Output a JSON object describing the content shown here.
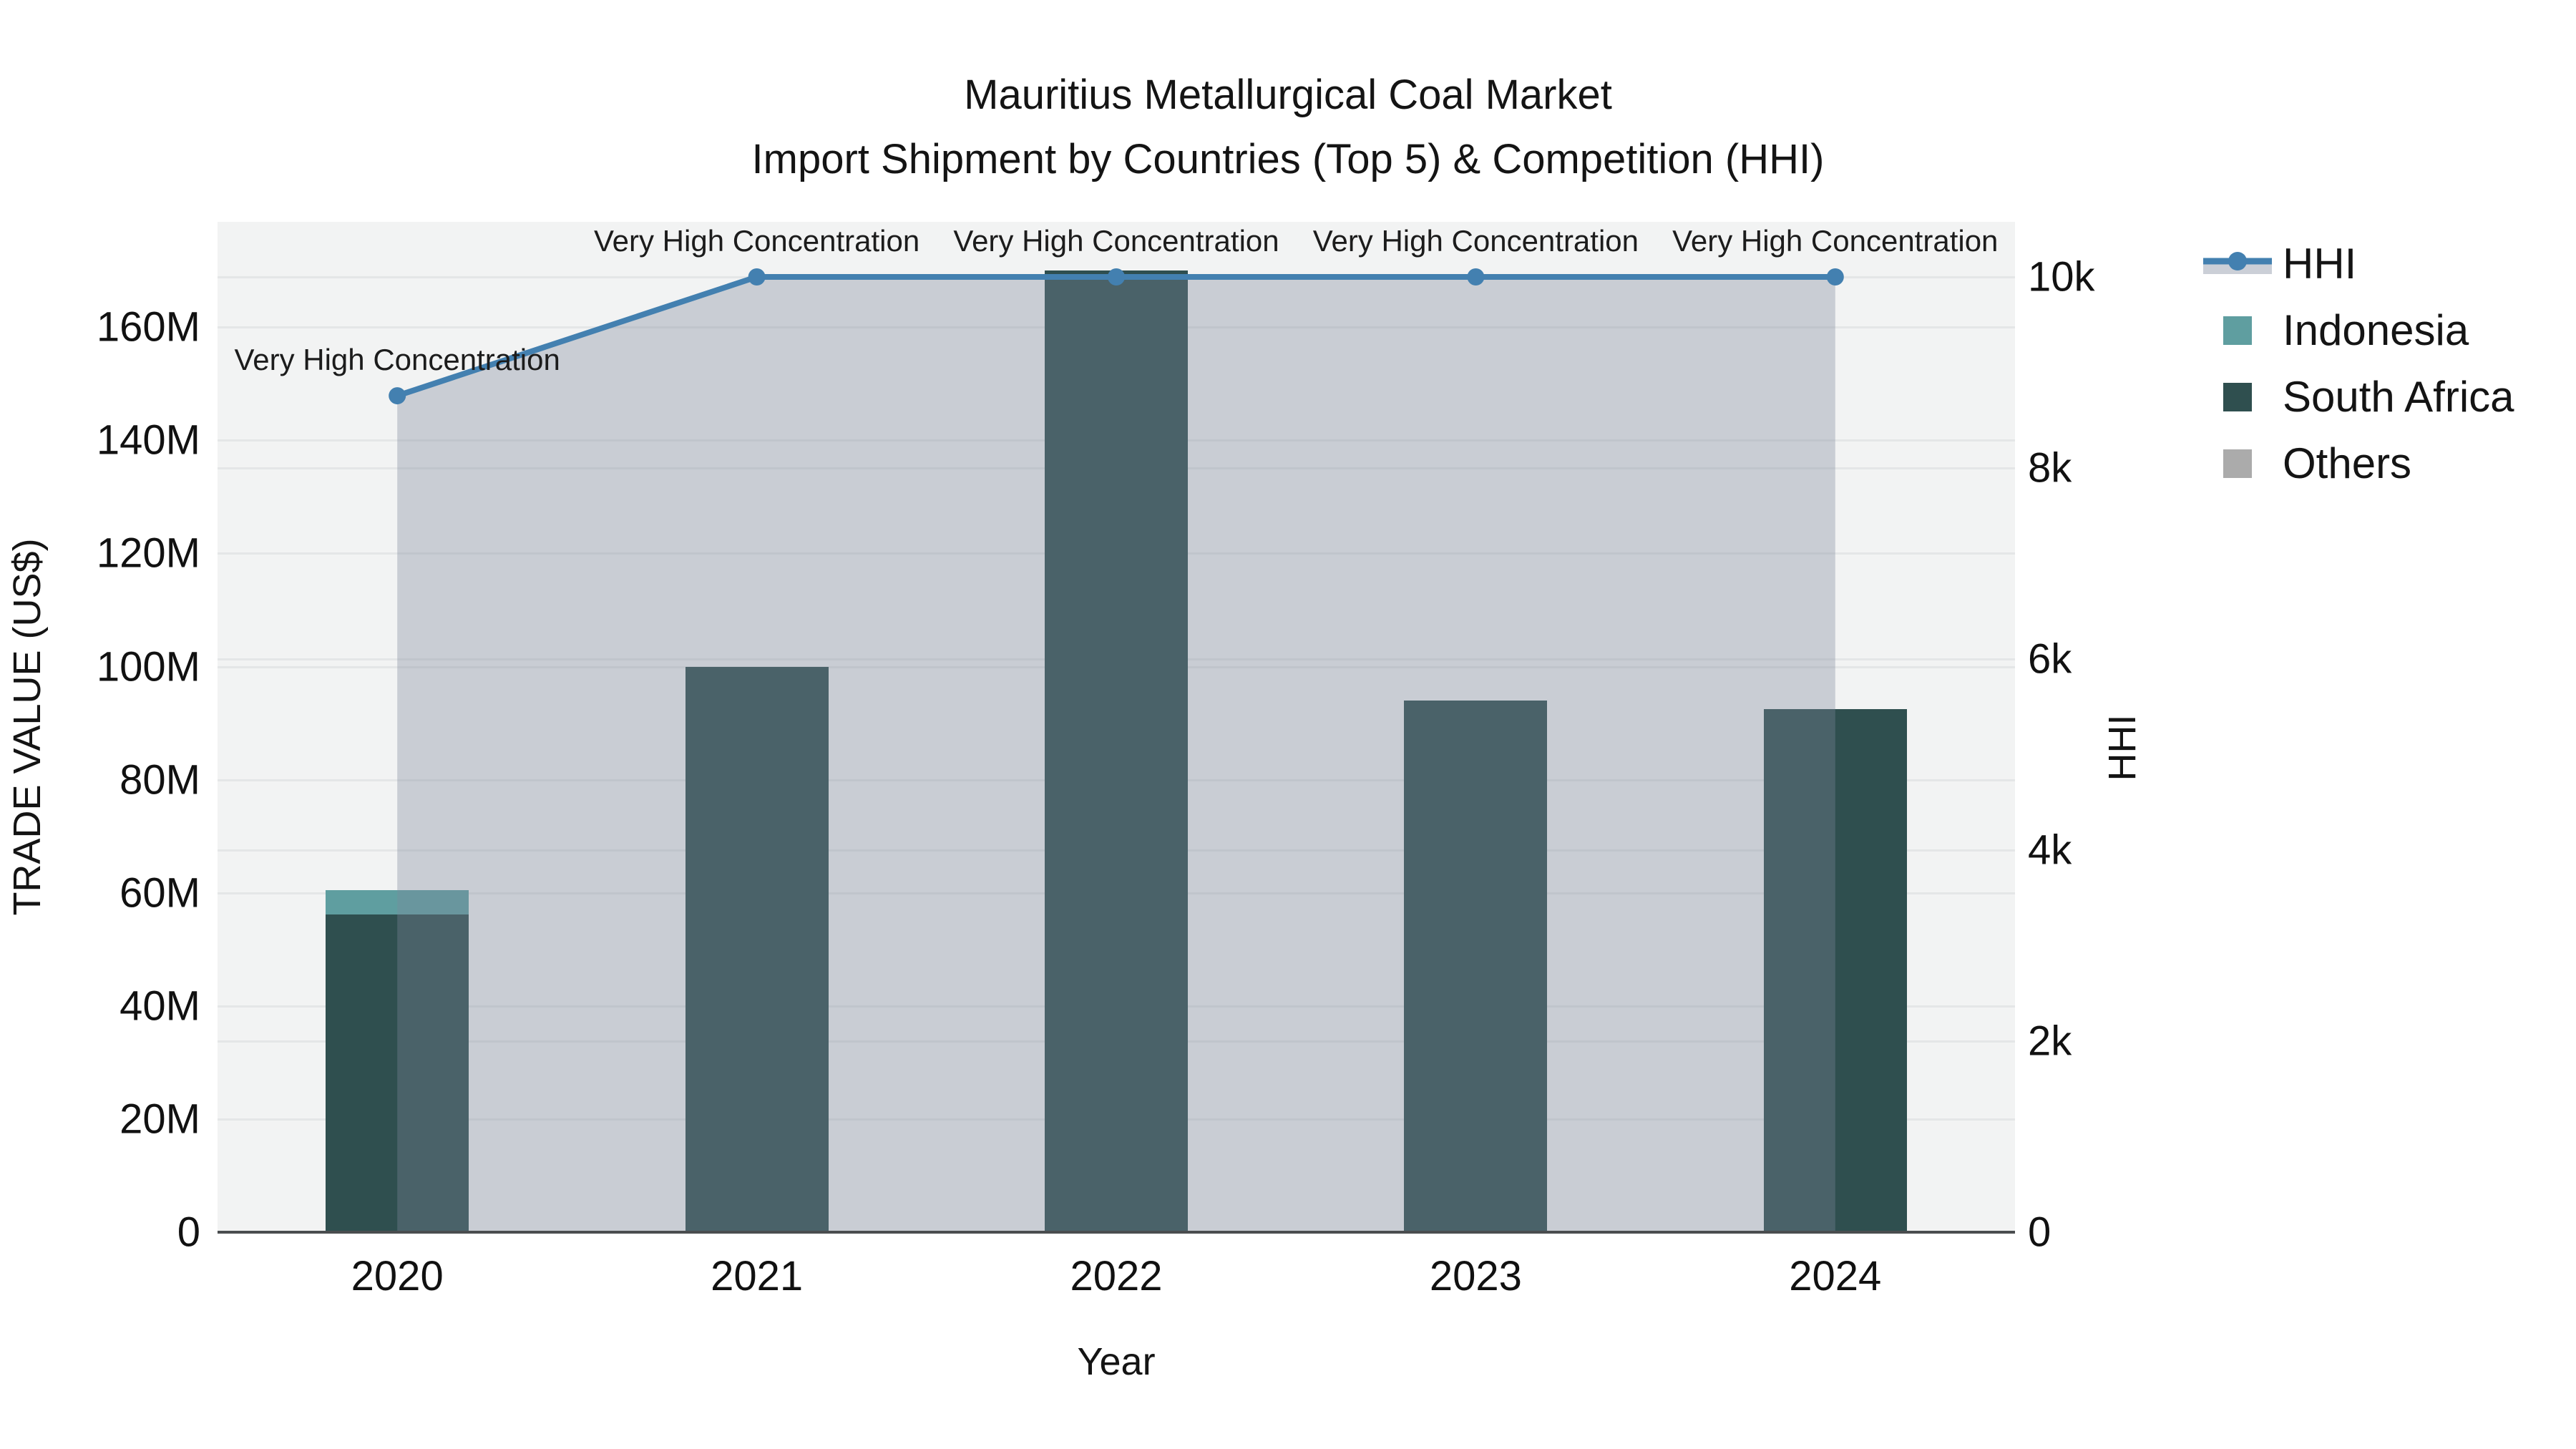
{
  "title": {
    "line1": "Mauritius Metallurgical Coal Market",
    "line2": "Import Shipment by Countries (Top 5) & Competition (HHI)"
  },
  "chart_data": {
    "type": "bar+line dual-axis",
    "categories": [
      "2020",
      "2021",
      "2022",
      "2023",
      "2024"
    ],
    "bar_series": [
      {
        "name": "South Africa",
        "color": "#2F4F4F",
        "values": [
          56.2,
          100,
          170,
          94,
          92.5
        ]
      },
      {
        "name": "Indonesia",
        "color": "#5F9EA0",
        "values": [
          4.3,
          0,
          0,
          0,
          0
        ]
      },
      {
        "name": "Others",
        "color": "#ABABAB",
        "values": [
          0,
          0,
          0,
          0,
          0
        ]
      }
    ],
    "bar_unit": "M US$",
    "line_series": {
      "name": "HHI",
      "color": "#4380B0",
      "area_fill": "rgba(125,136,155,0.35)",
      "values": [
        8756,
        10000,
        10000,
        10000,
        10000
      ],
      "annotations": [
        "Very High Concentration",
        "Very High Concentration",
        "Very High Concentration",
        "Very High Concentration",
        "Very High Concentration"
      ]
    },
    "x_axis": {
      "title": "Year"
    },
    "left_axis": {
      "title": "TRADE VALUE (US$)",
      "range": [
        0,
        178.6
      ],
      "ticks": [
        {
          "value": 0,
          "label": "0"
        },
        {
          "value": 20,
          "label": "20M"
        },
        {
          "value": 40,
          "label": "40M"
        },
        {
          "value": 60,
          "label": "60M"
        },
        {
          "value": 80,
          "label": "80M"
        },
        {
          "value": 100,
          "label": "100M"
        },
        {
          "value": 120,
          "label": "120M"
        },
        {
          "value": 140,
          "label": "140M"
        },
        {
          "value": 160,
          "label": "160M"
        }
      ]
    },
    "right_axis": {
      "title": "HHI",
      "range": [
        0,
        10577
      ],
      "ticks": [
        {
          "value": 0,
          "label": "0"
        },
        {
          "value": 2000,
          "label": "2k"
        },
        {
          "value": 4000,
          "label": "4k"
        },
        {
          "value": 6000,
          "label": "6k"
        },
        {
          "value": 8000,
          "label": "8k"
        },
        {
          "value": 10000,
          "label": "10k"
        }
      ]
    },
    "legend_order": [
      "HHI",
      "Indonesia",
      "South Africa",
      "Others"
    ],
    "grid": true,
    "legend_position": "right-top",
    "plot_background": "#f2f3f3"
  }
}
